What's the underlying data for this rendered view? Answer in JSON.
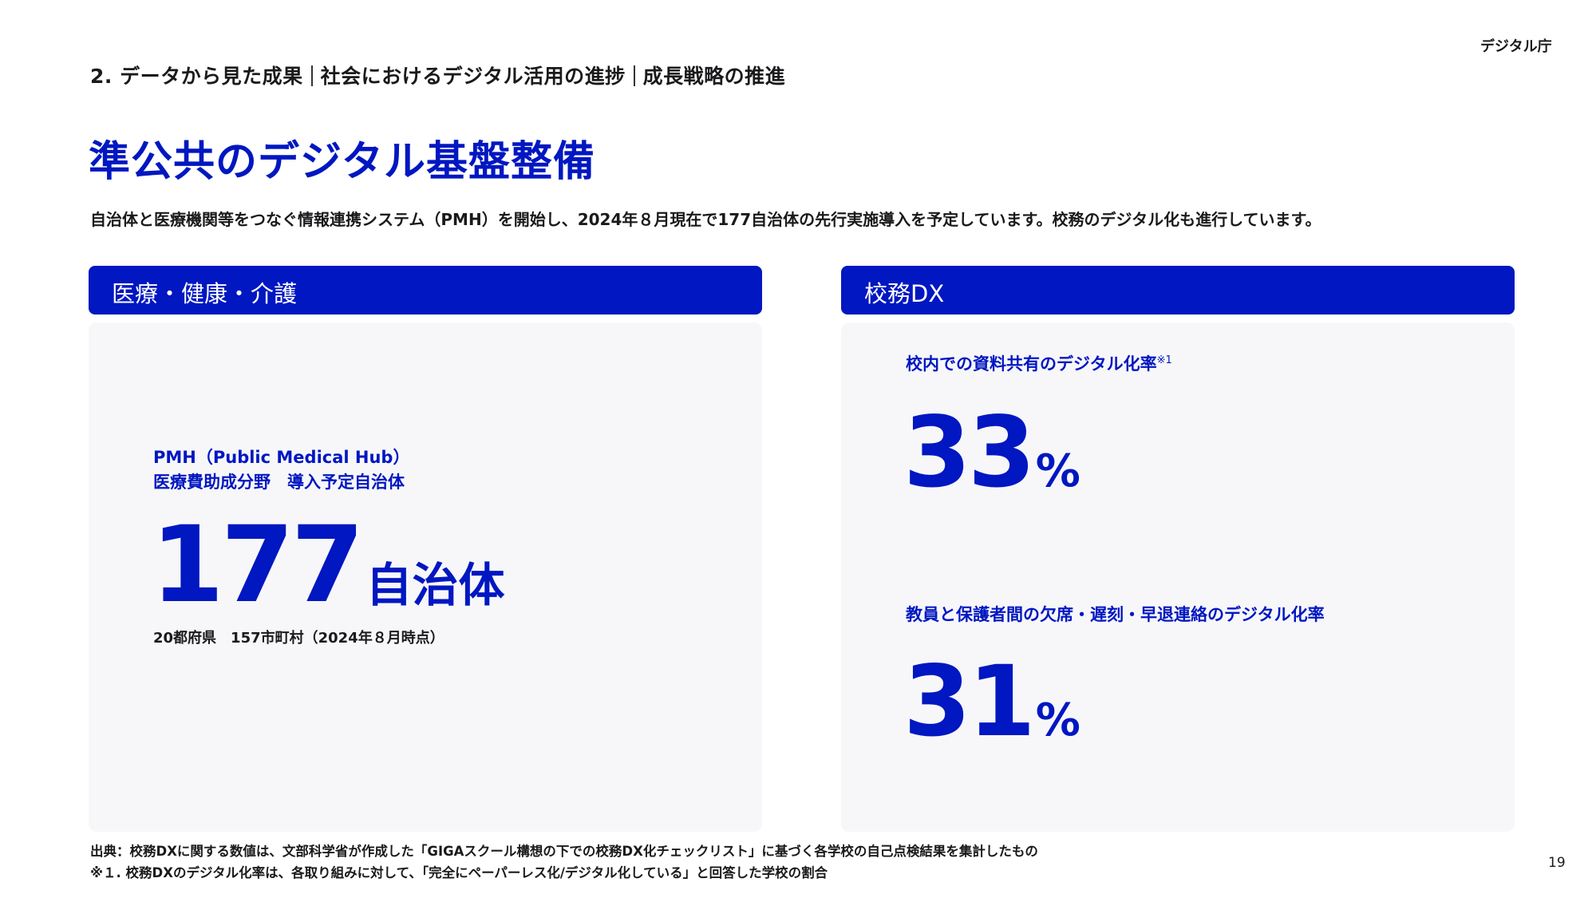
{
  "header": {
    "logo": "デジタル庁",
    "breadcrumb": [
      "2. データから見た成果",
      "社会におけるデジタル活用の進捗",
      "成長戦略の推進"
    ]
  },
  "title": "準公共のデジタル基盤整備",
  "description": "自治体と医療機関等をつなぐ情報連携システム（PMH）を開始し、2024年８月現在で177自治体の先行実施導入を予定しています。校務のデジタル化も進行しています。",
  "left_panel": {
    "heading": "医療・健康・介護",
    "label_line1": "PMH（Public Medical Hub）",
    "label_line2": "医療費助成分野　導入予定自治体",
    "value": "177",
    "unit": "自治体",
    "note": "20都府県　157市町村（2024年８月時点）"
  },
  "right_panel": {
    "heading": "校務DX",
    "metrics": [
      {
        "label": "校内での資料共有のデジタル化率",
        "note_mark": "※1",
        "value": "33",
        "unit": "%"
      },
      {
        "label": "教員と保護者間の欠席・遅刻・早退連絡のデジタル化率",
        "note_mark": "",
        "value": "31",
        "unit": "%"
      }
    ]
  },
  "footer": {
    "source": "出典：校務DXに関する数値は、文部科学省が作成した「GIGAスクール構想の下での校務DX化チェックリスト」に基づく各学校の自己点検結果を集計したもの",
    "note": "※１. 校務DXのデジタル化率は、各取り組みに対して、「完全にペーパーレス化/デジタル化している」と回答した学校の割合",
    "page": "19"
  },
  "colors": {
    "accent": "#0017c1",
    "panel_bg": "#f7f7fa"
  }
}
